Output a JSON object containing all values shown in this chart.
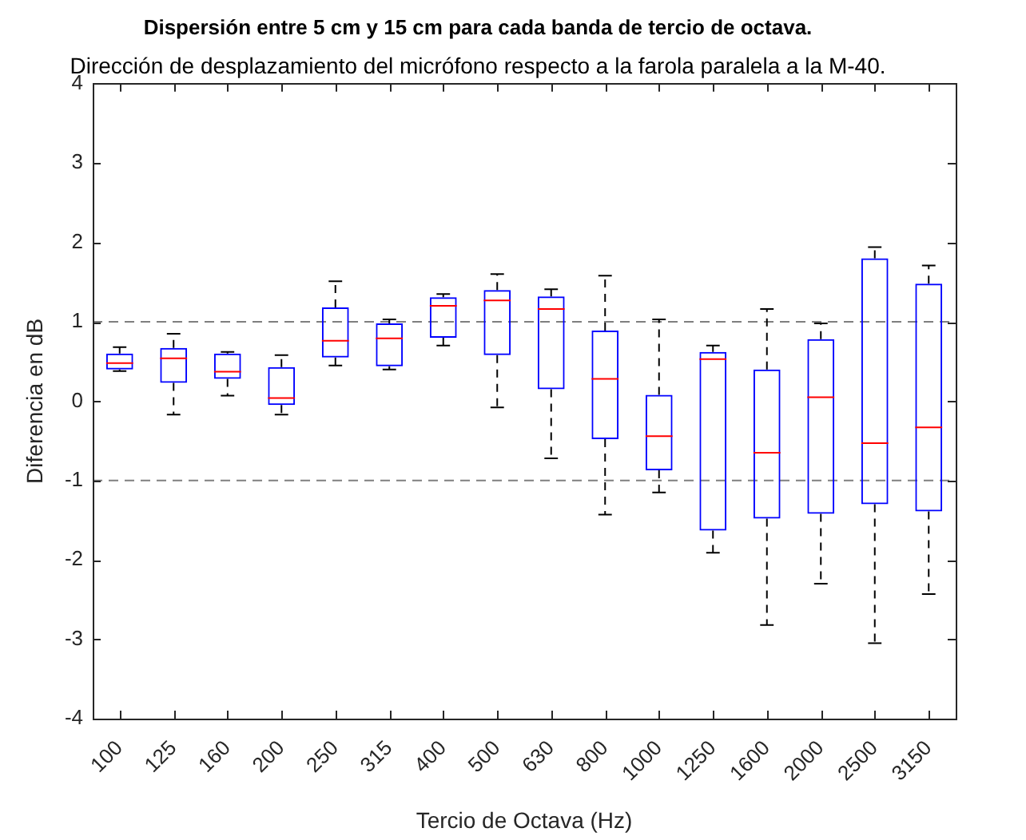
{
  "chart_data": {
    "type": "box",
    "title": "Dispersión entre 5 cm y 15 cm para cada banda de tercio de octava.",
    "subtitle": "Dirección de desplazamiento del micrófono respecto a la farola paralela a la M-40.",
    "xlabel": "Tercio de Octava (Hz)",
    "ylabel": "Diferencia en dB",
    "categories": [
      "100",
      "125",
      "160",
      "200",
      "250",
      "315",
      "400",
      "500",
      "630",
      "800",
      "1000",
      "1250",
      "1600",
      "2000",
      "2500",
      "3150"
    ],
    "series": [
      {
        "color": "#0000ff",
        "boxes": [
          {
            "low": 0.38,
            "q1": 0.4,
            "median": 0.48,
            "q3": 0.6,
            "high": 0.68
          },
          {
            "low": -0.17,
            "q1": 0.23,
            "median": 0.54,
            "q3": 0.67,
            "high": 0.85
          },
          {
            "low": 0.07,
            "q1": 0.28,
            "median": 0.37,
            "q3": 0.6,
            "high": 0.62
          },
          {
            "low": -0.17,
            "q1": -0.05,
            "median": 0.04,
            "q3": 0.43,
            "high": 0.58
          },
          {
            "low": 0.45,
            "q1": 0.55,
            "median": 0.76,
            "q3": 1.18,
            "high": 1.51
          },
          {
            "low": 0.4,
            "q1": 0.44,
            "median": 0.79,
            "q3": 0.98,
            "high": 1.03
          },
          {
            "low": 0.7,
            "q1": 0.8,
            "median": 1.2,
            "q3": 1.31,
            "high": 1.35
          },
          {
            "low": -0.08,
            "q1": 0.58,
            "median": 1.27,
            "q3": 1.4,
            "high": 1.6
          },
          {
            "low": -0.72,
            "q1": 0.15,
            "median": 1.16,
            "q3": 1.32,
            "high": 1.41
          },
          {
            "low": -1.43,
            "q1": -0.48,
            "median": 0.28,
            "q3": 0.89,
            "high": 1.58
          },
          {
            "low": -1.15,
            "q1": -0.87,
            "median": -0.44,
            "q3": 0.08,
            "high": 1.03
          },
          {
            "low": -1.91,
            "q1": -1.63,
            "median": 0.53,
            "q3": 0.62,
            "high": 0.7
          },
          {
            "low": -2.82,
            "q1": -1.48,
            "median": -0.65,
            "q3": 0.4,
            "high": 1.16
          },
          {
            "low": -2.3,
            "q1": -1.42,
            "median": 0.05,
            "q3": 0.78,
            "high": 0.98
          },
          {
            "low": -3.05,
            "q1": -1.3,
            "median": -0.53,
            "q3": 1.8,
            "high": 1.94
          },
          {
            "low": -2.43,
            "q1": -1.39,
            "median": -0.33,
            "q3": 1.48,
            "high": 1.71
          }
        ]
      }
    ],
    "ylim": [
      -4,
      4
    ],
    "yticks": [
      -4,
      -3,
      -2,
      -1,
      0,
      1,
      2,
      3,
      4
    ],
    "ref_lines": [
      {
        "axis": "y",
        "value": 1,
        "color": "#7f7f7f",
        "line_style": "dashed"
      },
      {
        "axis": "y",
        "value": -1,
        "color": "#7f7f7f",
        "line_style": "dashed"
      }
    ]
  }
}
